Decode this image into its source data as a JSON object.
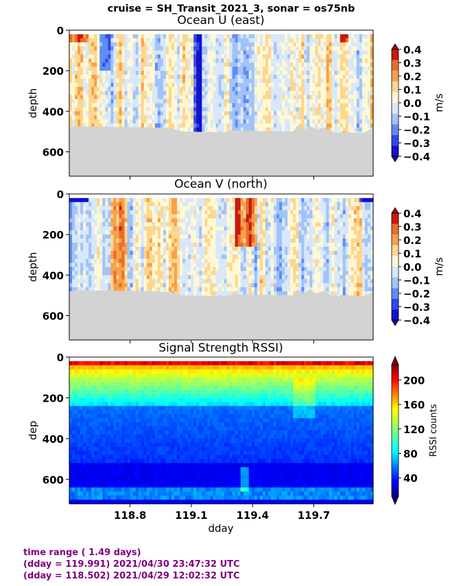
{
  "suptitle": "cruise = SH_Transit_2021_3,  sonar = os75nb",
  "footer": {
    "line1": "time range ( 1.49 days)",
    "line2": "(dday = 119.991) 2021/04/30 23:47:32 UTC",
    "line3": "(dday = 118.502) 2021/04/29 12:02:32 UTC"
  },
  "colors": {
    "footer_text": "#800080",
    "no_data_fill": "#d3d3d3"
  },
  "chart_data": [
    {
      "type": "heatmap",
      "title": "Ocean U (east)",
      "ylabel": "depth",
      "xlabel": "",
      "xlim": [
        118.502,
        119.991
      ],
      "ylim": [
        720,
        0
      ],
      "yticks": [
        0,
        200,
        400,
        600
      ],
      "xticks": [
        118.8,
        119.1,
        119.4,
        119.7
      ],
      "colorbar": {
        "label": "m/s",
        "min": -0.4,
        "max": 0.4,
        "ticks": [
          0.4,
          0.3,
          0.2,
          0.1,
          0.0,
          -0.1,
          -0.2,
          -0.3,
          -0.4
        ],
        "tick_labels": [
          "0.4",
          "0.3",
          "0.2",
          "0.1",
          "0.0",
          "−0.1",
          "−0.2",
          "−0.3",
          "−0.4"
        ],
        "colormap": "bwr-banded"
      },
      "data_bottom_depth": [
        [
          118.502,
          480
        ],
        [
          118.55,
          475
        ],
        [
          118.9,
          480
        ],
        [
          119.0,
          485
        ],
        [
          119.06,
          500
        ],
        [
          119.25,
          505
        ],
        [
          119.3,
          495
        ],
        [
          119.6,
          500
        ],
        [
          119.62,
          470
        ],
        [
          119.65,
          495
        ],
        [
          119.68,
          470
        ],
        [
          119.71,
          490
        ],
        [
          119.75,
          480
        ],
        [
          119.8,
          505
        ],
        [
          119.95,
          505
        ],
        [
          119.991,
          480
        ]
      ]
    },
    {
      "type": "heatmap",
      "title": "Ocean V (north)",
      "ylabel": "depth",
      "xlabel": "",
      "xlim": [
        118.502,
        119.991
      ],
      "ylim": [
        720,
        0
      ],
      "yticks": [
        0,
        200,
        400,
        600
      ],
      "xticks": [
        118.8,
        119.1,
        119.4,
        119.7
      ],
      "colorbar": {
        "label": "m/s",
        "min": -0.4,
        "max": 0.4,
        "ticks": [
          0.4,
          0.3,
          0.2,
          0.1,
          0.0,
          -0.1,
          -0.2,
          -0.3,
          -0.4
        ],
        "tick_labels": [
          "0.4",
          "0.3",
          "0.2",
          "0.1",
          "0.0",
          "−0.1",
          "−0.2",
          "−0.3",
          "−0.4"
        ],
        "colormap": "bwr-banded"
      },
      "data_bottom_depth": [
        [
          118.502,
          480
        ],
        [
          118.55,
          475
        ],
        [
          118.9,
          480
        ],
        [
          119.0,
          485
        ],
        [
          119.06,
          500
        ],
        [
          119.25,
          505
        ],
        [
          119.3,
          495
        ],
        [
          119.6,
          500
        ],
        [
          119.62,
          470
        ],
        [
          119.65,
          495
        ],
        [
          119.68,
          470
        ],
        [
          119.71,
          490
        ],
        [
          119.75,
          480
        ],
        [
          119.8,
          505
        ],
        [
          119.95,
          505
        ],
        [
          119.991,
          480
        ]
      ]
    },
    {
      "type": "heatmap",
      "title": "Signal Strength RSSI)",
      "ylabel": "dep",
      "xlabel": "dday",
      "xlim": [
        118.502,
        119.991
      ],
      "ylim": [
        720,
        0
      ],
      "yticks": [
        0,
        200,
        400,
        600
      ],
      "xticks": [
        118.8,
        119.1,
        119.4,
        119.7
      ],
      "xtick_labels": [
        "118.8",
        "119.1",
        "119.4",
        "119.7"
      ],
      "colorbar": {
        "label": "RSSI counts",
        "min": 10,
        "max": 225,
        "ticks": [
          200,
          160,
          120,
          80,
          40
        ],
        "tick_labels": [
          "200",
          "160",
          "120",
          "80",
          "40"
        ],
        "colormap": "jet"
      }
    }
  ]
}
